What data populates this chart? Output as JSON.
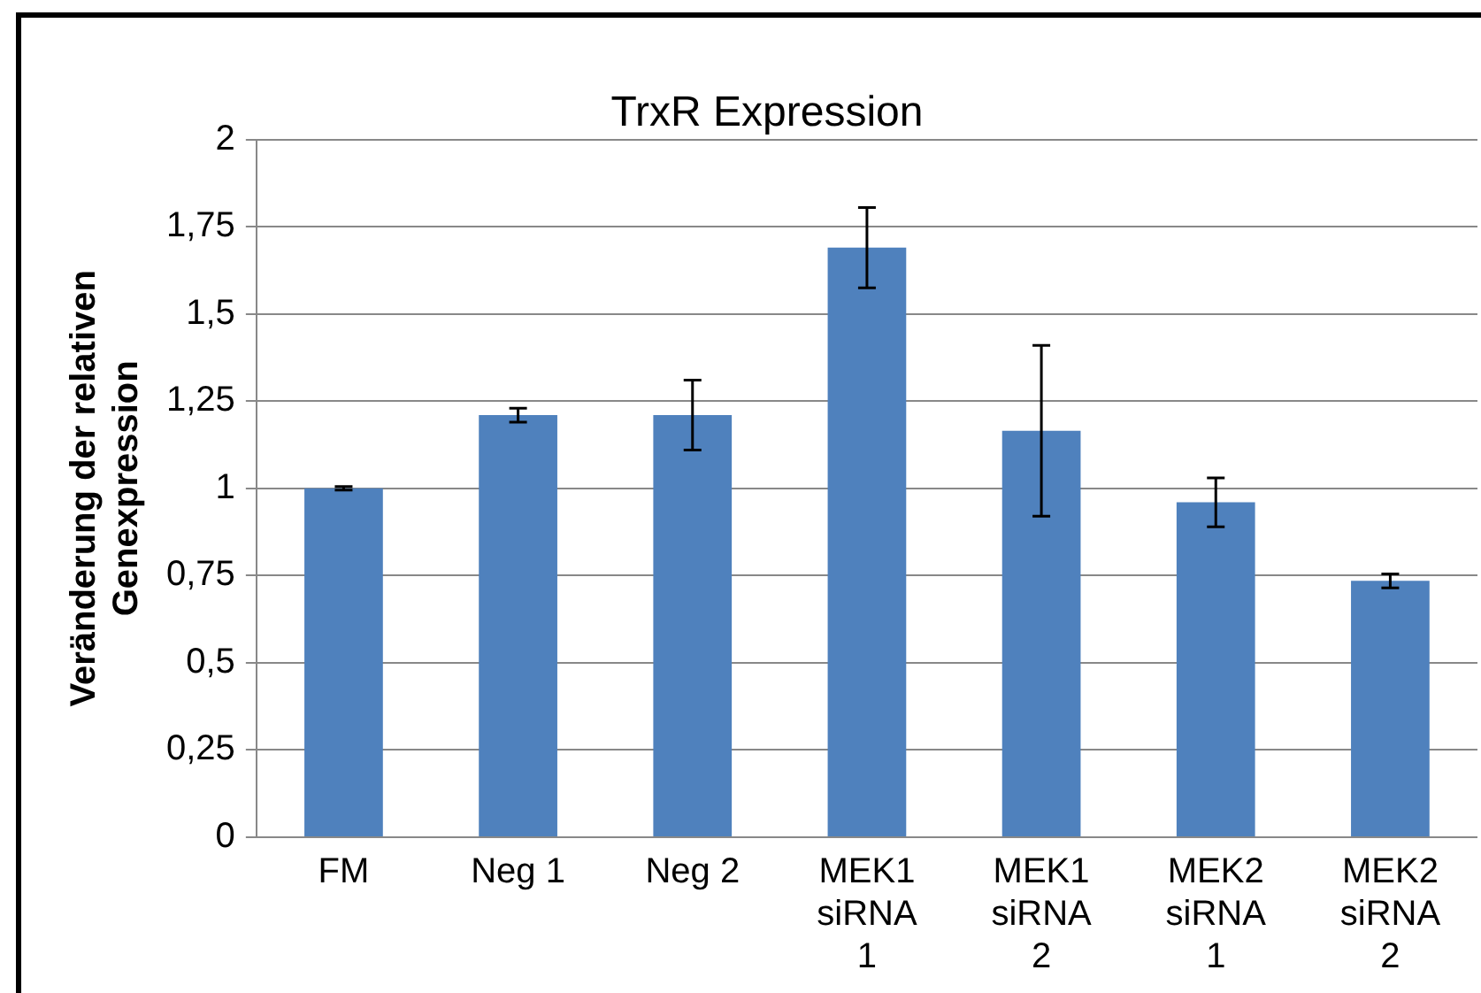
{
  "chart_data": {
    "type": "bar",
    "title": "TrxR Expression",
    "ylabel": "Veränderung der relativen Genexpression",
    "categories": [
      "FM",
      "Neg 1",
      "Neg 2",
      "MEK1 siRNA 1",
      "MEK1 siRNA 2",
      "MEK2 siRNA 1",
      "MEK2 siRNA 2"
    ],
    "values": [
      1.0,
      1.21,
      1.21,
      1.69,
      1.165,
      0.96,
      0.735
    ],
    "errors": [
      0.005,
      0.02,
      0.1,
      0.115,
      0.245,
      0.07,
      0.02
    ],
    "color": "#4f81bd",
    "ylim": [
      0,
      2
    ],
    "yticks": [
      0,
      {
        "value": 0.25,
        "label": "0,25"
      },
      {
        "value": 0.5,
        "label": "0,5"
      },
      {
        "value": 0.75,
        "label": "0,75"
      },
      1,
      {
        "value": 1.25,
        "label": "1,25"
      },
      {
        "value": 1.5,
        "label": "1,5"
      },
      {
        "value": 1.75,
        "label": "1,75"
      },
      2
    ],
    "grid": "y",
    "legend": false
  }
}
